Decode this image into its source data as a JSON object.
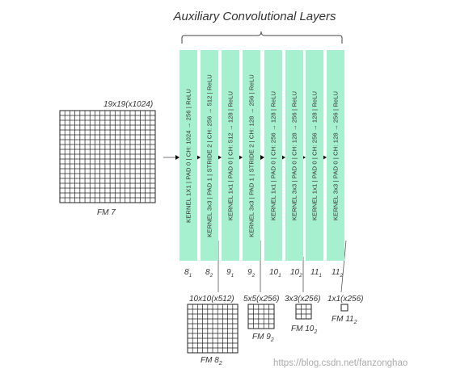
{
  "title": "Auxiliary Convolutional Layers",
  "fm7": {
    "size_label": "19x19(x1024)",
    "name": "FM 7"
  },
  "layers": [
    {
      "text": "KERNEL 1X1 | PAD 0 | CH: 1024 → 256 | ReLU",
      "label_base": "8",
      "label_sub": "1"
    },
    {
      "text": "KERNEL 3x3 | PAD 1 | STRIDE 2 | CH: 256 → 512 | ReLU",
      "label_base": "8",
      "label_sub": "2"
    },
    {
      "text": "KERNEL 1x1 | PAD 0 | CH: 512 → 128 | ReLU",
      "label_base": "9",
      "label_sub": "1"
    },
    {
      "text": "KERNEL 3x3 | PAD 1 | STRIDE 2 | CH: 128 → 256 | ReLU",
      "label_base": "9",
      "label_sub": "2"
    },
    {
      "text": "KERNEL 1x1 | PAD 0 | CH: 256 → 128 | ReLU",
      "label_base": "10",
      "label_sub": "1"
    },
    {
      "text": "KERNEL 3x3 | PAD 0 | CH: 128 → 256 | ReLU",
      "label_base": "10",
      "label_sub": "2"
    },
    {
      "text": "KERNEL 1x1 | PAD 0 | CH: 256 → 128 | ReLU",
      "label_base": "11",
      "label_sub": "1"
    },
    {
      "text": "KERNEL 3x3 | PAD 0 | CH: 128 → 256 | ReLU",
      "label_base": "11",
      "label_sub": "2"
    }
  ],
  "outputs": [
    {
      "size_label": "10x10(x512)",
      "name_base": "FM 8",
      "name_sub": "2"
    },
    {
      "size_label": "5x5(x256)",
      "name_base": "FM 9",
      "name_sub": "2"
    },
    {
      "size_label": "3x3(x256)",
      "name_base": "FM 10",
      "name_sub": "2"
    },
    {
      "size_label": "1x1(x256)",
      "name_base": "FM 11",
      "name_sub": "2"
    }
  ],
  "watermark": "https://blog.csdn.net/fanzonghao"
}
